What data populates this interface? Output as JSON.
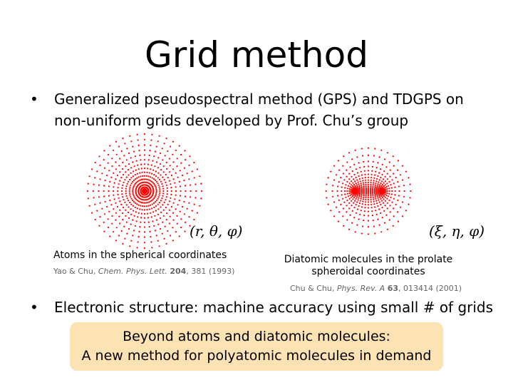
{
  "title": "Grid method",
  "bullets": [
    {
      "lines": [
        "Generalized pseudospectral method (GPS) and TDGPS on",
        "non-uniform grids developed by Prof. Chu’s group"
      ]
    },
    {
      "lines": [
        "Electronic structure: machine accuracy using small # of grids"
      ]
    }
  ],
  "figures": [
    {
      "math": "(r, θ, φ)",
      "caption": [
        "Atoms in the spherical coordinates"
      ],
      "citation": {
        "authors": "Yao & Chu,",
        "journal": "Chem. Phys. Lett.",
        "volume": "204",
        "rest": ", 381 (1993)"
      }
    },
    {
      "math": "(ξ, η, φ)",
      "caption": [
        "Diatomic molecules in the prolate",
        "spheroidal coordinates"
      ],
      "citation": {
        "authors": "Chu & Chu,",
        "journal": "Phys. Rev. A",
        "volume": "63",
        "rest": ", 013414 (2001)"
      }
    }
  ],
  "box": {
    "lines": [
      "Beyond atoms and diatomic molecules:",
      "A new method for polyatomic molecules in demand"
    ]
  }
}
